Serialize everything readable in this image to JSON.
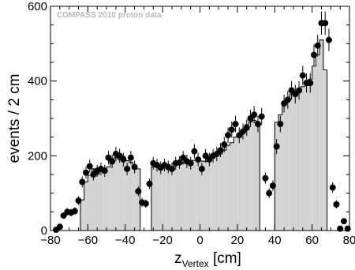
{
  "chart_data": {
    "type": "bar",
    "annotation": "COMPASS 2010 proton data",
    "xlabel_main": "z",
    "xlabel_sub": "Vertex",
    "xlabel_unit": " [cm]",
    "ylabel": "events / 2 cm",
    "xlim": [
      -80,
      80
    ],
    "ylim": [
      0,
      600
    ],
    "bin_width": 2,
    "xticks": [
      -80,
      -60,
      -40,
      -20,
      0,
      20,
      40,
      60,
      80
    ],
    "xtick_labels": [
      "−80",
      "−60",
      "−40",
      "−20",
      "0",
      "20",
      "40",
      "60",
      "80"
    ],
    "yticks": [
      0,
      200,
      400,
      600
    ],
    "ytick_labels": [
      "0",
      "200",
      "400",
      "600"
    ],
    "fill_color": "#d3d3d3",
    "series": [
      {
        "kind": "histogram",
        "bins": [
          [
            -66,
            0
          ],
          [
            -64,
            82
          ],
          [
            -62,
            130
          ],
          [
            -60,
            148
          ],
          [
            -58,
            165
          ],
          [
            -56,
            150
          ],
          [
            -54,
            162
          ],
          [
            -52,
            160
          ],
          [
            -50,
            170
          ],
          [
            -48,
            185
          ],
          [
            -46,
            195
          ],
          [
            -44,
            190
          ],
          [
            -42,
            198
          ],
          [
            -40,
            187
          ],
          [
            -38,
            183
          ],
          [
            -36,
            172
          ],
          [
            -34,
            165
          ],
          [
            -32,
            0
          ],
          [
            -28,
            0
          ],
          [
            -26,
            170
          ],
          [
            -24,
            180
          ],
          [
            -22,
            175
          ],
          [
            -20,
            172
          ],
          [
            -18,
            176
          ],
          [
            -16,
            170
          ],
          [
            -14,
            180
          ],
          [
            -12,
            185
          ],
          [
            -10,
            180
          ],
          [
            -8,
            185
          ],
          [
            -6,
            182
          ],
          [
            -4,
            188
          ],
          [
            -2,
            190
          ],
          [
            0,
            186
          ],
          [
            2,
            185
          ],
          [
            4,
            192
          ],
          [
            6,
            195
          ],
          [
            8,
            200
          ],
          [
            10,
            205
          ],
          [
            12,
            215
          ],
          [
            14,
            228
          ],
          [
            16,
            235
          ],
          [
            18,
            250
          ],
          [
            20,
            258
          ],
          [
            22,
            268
          ],
          [
            24,
            283
          ],
          [
            26,
            290
          ],
          [
            28,
            295
          ],
          [
            30,
            280
          ],
          [
            32,
            0
          ],
          [
            38,
            0
          ],
          [
            40,
            290
          ],
          [
            42,
            310
          ],
          [
            44,
            335
          ],
          [
            46,
            350
          ],
          [
            48,
            365
          ],
          [
            50,
            372
          ],
          [
            52,
            380
          ],
          [
            54,
            385
          ],
          [
            56,
            388
          ],
          [
            58,
            405
          ],
          [
            60,
            440
          ],
          [
            62,
            470
          ],
          [
            64,
            510
          ],
          [
            66,
            430
          ],
          [
            68,
            0
          ]
        ]
      },
      {
        "kind": "points",
        "x": [
          -77,
          -75,
          -73,
          -71,
          -69,
          -67,
          -65,
          -63,
          -61,
          -59,
          -57,
          -55,
          -53,
          -51,
          -49,
          -47,
          -45,
          -43,
          -41,
          -39,
          -37,
          -35,
          -33,
          -31,
          -29,
          -27,
          -25,
          -23,
          -21,
          -19,
          -17,
          -15,
          -13,
          -11,
          -9,
          -7,
          -5,
          -3,
          -1,
          1,
          3,
          5,
          7,
          9,
          11,
          13,
          15,
          17,
          19,
          21,
          23,
          25,
          27,
          29,
          31,
          33,
          35,
          37,
          39,
          41,
          43,
          45,
          47,
          49,
          51,
          53,
          55,
          57,
          59,
          61,
          63,
          65,
          67,
          69,
          71,
          73,
          75,
          77,
          79
        ],
        "y": [
          2,
          10,
          40,
          50,
          48,
          52,
          80,
          130,
          155,
          172,
          150,
          160,
          165,
          160,
          195,
          185,
          205,
          200,
          190,
          165,
          195,
          170,
          105,
          75,
          72,
          125,
          180,
          175,
          168,
          175,
          170,
          165,
          180,
          182,
          195,
          185,
          180,
          212,
          190,
          165,
          200,
          190,
          200,
          205,
          215,
          230,
          255,
          270,
          285,
          255,
          265,
          275,
          300,
          310,
          285,
          305,
          140,
          100,
          120,
          225,
          285,
          340,
          350,
          375,
          365,
          375,
          415,
          395,
          395,
          470,
          495,
          555,
          555,
          510,
          115,
          70,
          5,
          25,
          5
        ],
        "err": [
          2,
          4,
          8,
          10,
          10,
          10,
          12,
          15,
          16,
          17,
          16,
          16,
          17,
          16,
          18,
          18,
          19,
          19,
          18,
          17,
          18,
          17,
          13,
          12,
          11,
          14,
          17,
          17,
          17,
          17,
          17,
          17,
          17,
          17,
          18,
          18,
          17,
          19,
          18,
          17,
          18,
          18,
          18,
          19,
          19,
          20,
          21,
          22,
          22,
          21,
          21,
          22,
          23,
          23,
          22,
          23,
          15,
          13,
          14,
          20,
          22,
          24,
          24,
          25,
          25,
          25,
          26,
          26,
          26,
          28,
          29,
          31,
          31,
          30,
          14,
          11,
          3,
          7,
          3
        ]
      }
    ],
    "grid": false,
    "legend": "none"
  }
}
